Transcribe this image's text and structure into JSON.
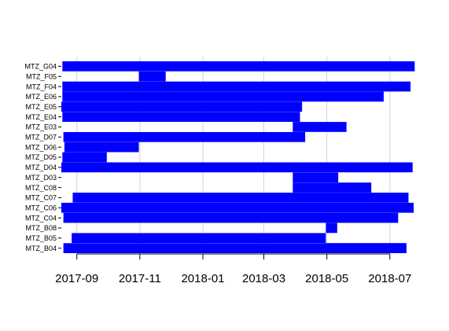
{
  "chart_data": {
    "type": "bar",
    "orientation": "horizontal-interval",
    "title": "",
    "xlabel": "",
    "ylabel": "",
    "categories": [
      "MTZ_G04",
      "MTZ_F05",
      "MTZ_F04",
      "MTZ_E06",
      "MTZ_E05",
      "MTZ_E04",
      "MTZ_E03",
      "MTZ_D07",
      "MTZ_D06",
      "MTZ_D05",
      "MTZ_D04",
      "MTZ_D03",
      "MTZ_C08",
      "MTZ_C07",
      "MTZ_C06",
      "MTZ_C04",
      "MTZ_B08",
      "MTZ_B05",
      "MTZ_B04"
    ],
    "segments": [
      {
        "category": "MTZ_G04",
        "start": "2017-08-18",
        "end": "2018-07-25"
      },
      {
        "category": "MTZ_F05",
        "start": "2017-10-31",
        "end": "2017-11-26"
      },
      {
        "category": "MTZ_F04",
        "start": "2017-08-18",
        "end": "2018-07-21"
      },
      {
        "category": "MTZ_E06",
        "start": "2017-08-18",
        "end": "2018-06-25"
      },
      {
        "category": "MTZ_E05",
        "start": "2017-08-17",
        "end": "2018-04-07"
      },
      {
        "category": "MTZ_E04",
        "start": "2017-08-18",
        "end": "2018-04-05"
      },
      {
        "category": "MTZ_E03",
        "start": "2018-03-29",
        "end": "2018-05-20"
      },
      {
        "category": "MTZ_D07",
        "start": "2017-08-19",
        "end": "2018-04-10"
      },
      {
        "category": "MTZ_D06",
        "start": "2017-08-20",
        "end": "2017-10-31"
      },
      {
        "category": "MTZ_D05",
        "start": "2017-08-18",
        "end": "2017-09-30"
      },
      {
        "category": "MTZ_D04",
        "start": "2017-08-17",
        "end": "2018-07-23"
      },
      {
        "category": "MTZ_D03",
        "start": "2018-03-29",
        "end": "2018-05-12"
      },
      {
        "category": "MTZ_C08",
        "start": "2018-03-29",
        "end": "2018-06-13"
      },
      {
        "category": "MTZ_C07",
        "start": "2017-08-28",
        "end": "2018-07-19"
      },
      {
        "category": "MTZ_C06",
        "start": "2017-08-17",
        "end": "2018-07-24"
      },
      {
        "category": "MTZ_C04",
        "start": "2017-08-19",
        "end": "2018-07-09"
      },
      {
        "category": "MTZ_B08",
        "start": "2018-04-30",
        "end": "2018-05-11"
      },
      {
        "category": "MTZ_B05",
        "start": "2017-08-27",
        "end": "2018-04-30"
      },
      {
        "category": "MTZ_B04",
        "start": "2017-08-19",
        "end": "2018-07-17"
      },
      {
        "category": "MTZ_B04",
        "start": "2018-04-30",
        "end": "2018-07-17"
      }
    ],
    "series_color": "#0000ff",
    "xlim": [
      "2017-08-17",
      "2018-07-27"
    ],
    "x_ticks": [
      "2017-09",
      "2017-11",
      "2018-01",
      "2018-03",
      "2018-05",
      "2018-07"
    ],
    "grid": "vertical",
    "legend": "none"
  }
}
